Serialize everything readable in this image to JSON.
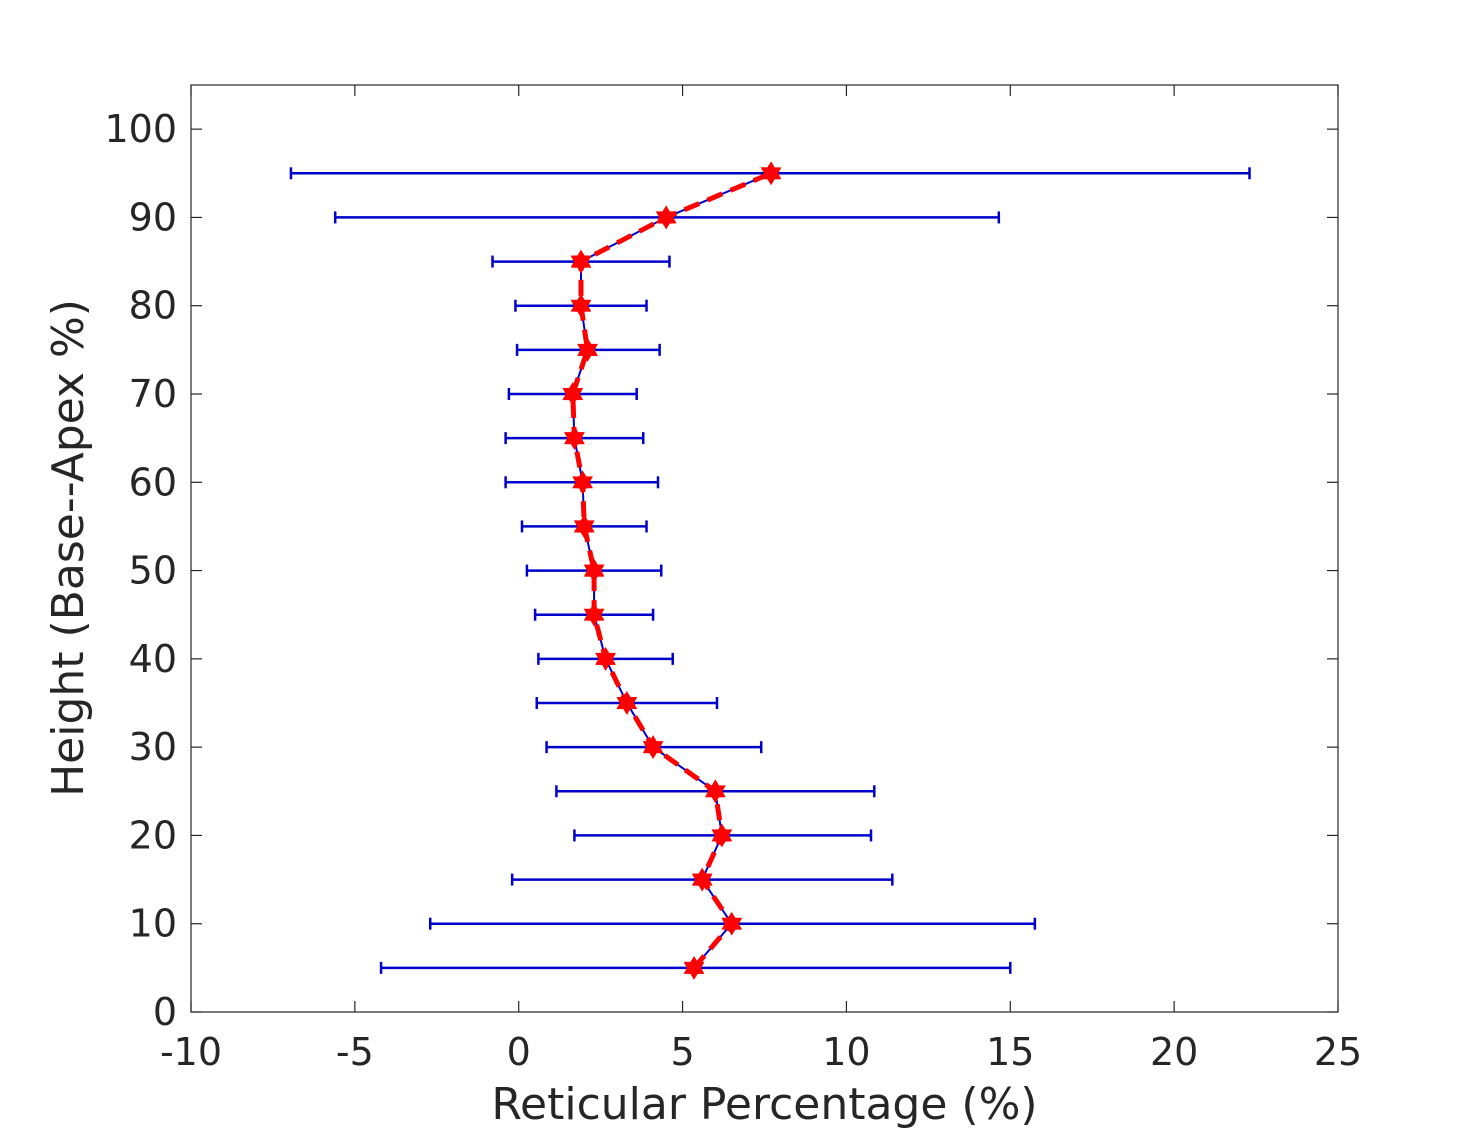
{
  "chart_data": {
    "type": "line",
    "xlabel": "Reticular Percentage (%)",
    "ylabel": "Height (Base--Apex %)",
    "xlim": [
      -10,
      25
    ],
    "ylim": [
      0,
      105
    ],
    "xticks": [
      -10,
      -5,
      0,
      5,
      10,
      15,
      20,
      25
    ],
    "xtick_labels": [
      "-10",
      "-5",
      "0",
      "5",
      "10",
      "15",
      "20",
      "25"
    ],
    "yticks": [
      0,
      10,
      20,
      30,
      40,
      50,
      60,
      70,
      80,
      90,
      100
    ],
    "ytick_labels": [
      "0",
      "10",
      "20",
      "30",
      "40",
      "50",
      "60",
      "70",
      "80",
      "90",
      "100"
    ],
    "grid": false,
    "box": true,
    "series": [
      {
        "line_color": "#0000cc",
        "marker_color": "#ff0000",
        "marker": "hexagram",
        "points": [
          {
            "y": 5,
            "x": 5.35,
            "xlo": -4.2,
            "xhi": 15.0
          },
          {
            "y": 10,
            "x": 6.5,
            "xlo": -2.7,
            "xhi": 15.75
          },
          {
            "y": 15,
            "x": 5.6,
            "xlo": -0.2,
            "xhi": 11.4
          },
          {
            "y": 20,
            "x": 6.2,
            "xlo": 1.7,
            "xhi": 10.75
          },
          {
            "y": 25,
            "x": 6.0,
            "xlo": 1.15,
            "xhi": 10.85
          },
          {
            "y": 30,
            "x": 4.1,
            "xlo": 0.85,
            "xhi": 7.4
          },
          {
            "y": 35,
            "x": 3.3,
            "xlo": 0.55,
            "xhi": 6.05
          },
          {
            "y": 40,
            "x": 2.65,
            "xlo": 0.6,
            "xhi": 4.7
          },
          {
            "y": 45,
            "x": 2.3,
            "xlo": 0.5,
            "xhi": 4.1
          },
          {
            "y": 50,
            "x": 2.3,
            "xlo": 0.25,
            "xhi": 4.35
          },
          {
            "y": 55,
            "x": 2.0,
            "xlo": 0.1,
            "xhi": 3.9
          },
          {
            "y": 60,
            "x": 1.95,
            "xlo": -0.4,
            "xhi": 4.25
          },
          {
            "y": 65,
            "x": 1.7,
            "xlo": -0.4,
            "xhi": 3.8
          },
          {
            "y": 70,
            "x": 1.65,
            "xlo": -0.3,
            "xhi": 3.6
          },
          {
            "y": 75,
            "x": 2.1,
            "xlo": -0.05,
            "xhi": 4.3
          },
          {
            "y": 80,
            "x": 1.9,
            "xlo": -0.1,
            "xhi": 3.9
          },
          {
            "y": 85,
            "x": 1.9,
            "xlo": -0.8,
            "xhi": 4.6
          },
          {
            "y": 90,
            "x": 4.5,
            "xlo": -5.6,
            "xhi": 14.65
          },
          {
            "y": 95,
            "x": 7.7,
            "xlo": -6.95,
            "xhi": 22.3
          }
        ]
      }
    ]
  }
}
